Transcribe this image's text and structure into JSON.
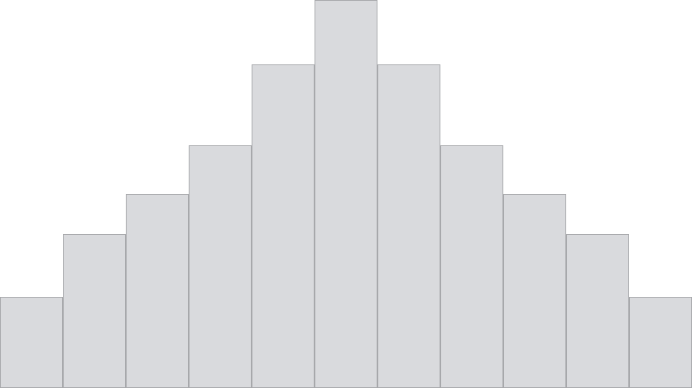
{
  "chart_data": {
    "type": "bar",
    "values": [
      116,
      196,
      247,
      309,
      412,
      494,
      412,
      309,
      247,
      196,
      116
    ],
    "ylim": [
      0,
      494
    ],
    "grid": false,
    "bar_fill": "#d9dadd",
    "bar_stroke": "#a7a8ab"
  }
}
